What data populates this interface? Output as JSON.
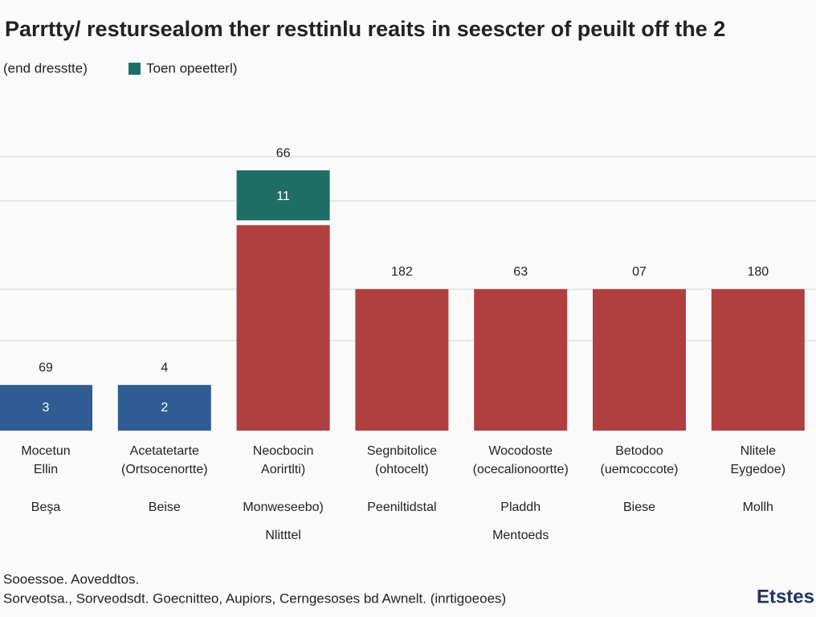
{
  "chart_data": {
    "type": "bar",
    "title": "Parrtty/ restursealom ther resttinlu reaits in seescter of peuilt off the  2",
    "legend_note": "(end dresstte)",
    "categories": [
      [
        "Mocetun",
        "Ellin",
        "Beşa"
      ],
      [
        "Acetatetarte",
        "(Ortsocenortte)",
        "Beise"
      ],
      [
        "Neocbocin",
        "Aorirtlti)",
        "Monweseebo)",
        "Nlitttel"
      ],
      [
        "Segnbitolice",
        "(ohtocelt)",
        "Peeniltidstal"
      ],
      [
        "Wocodoste",
        "(ocecalionoortte)",
        "Pladdh",
        "Mentoeds"
      ],
      [
        "Betodoo",
        "(uemcoccote)",
        "Biese"
      ],
      [
        "Nlitele",
        "Eygedoe)",
        "Mollh"
      ]
    ],
    "series": [
      {
        "color": "#2f5c93",
        "values": [
          1.0,
          1.0,
          null,
          null,
          null,
          null,
          null
        ]
      },
      {
        "color": "#b03f3f",
        "values": [
          null,
          null,
          4.5,
          3.1,
          3.1,
          3.1,
          3.1
        ]
      },
      {
        "name": "Toen opeetterl)",
        "color": "#1e6e67",
        "values": [
          null,
          null,
          1.2,
          null,
          null,
          null,
          null
        ]
      }
    ],
    "top_labels": [
      "69",
      "4",
      "66",
      "182",
      "63",
      "07",
      "180"
    ],
    "inner_labels": [
      "3",
      "2",
      "11"
    ],
    "ylim": [
      0,
      6
    ],
    "footer": [
      "Sooessoe. Aoveddtos.",
      "Sorveotsa., Sorveodsdt. Goecnitteo, Aupiors, Cerngesoses bd Awnelt. (inrtigoeoes)"
    ],
    "logo": "Etstes"
  }
}
